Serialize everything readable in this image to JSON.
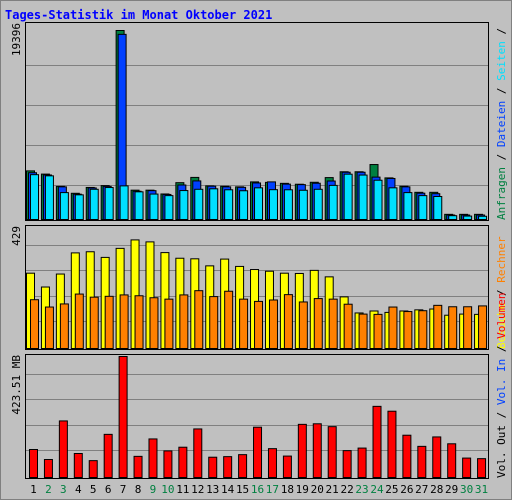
{
  "title": "Tages-Statistik im Monat Oktober 2021",
  "colors": {
    "background": "#C0C0C0",
    "title": "#0000FF",
    "hits": "#008040",
    "files": "#0040FF",
    "pages": "#00E0FF",
    "visits": "#FFFF00",
    "sites": "#FF8000",
    "volume": "#FF0000",
    "weekend": "#008040",
    "weekday": "#000000"
  },
  "chart_data": [
    {
      "type": "bar",
      "panel": "top",
      "ymax_label": "19396",
      "ylim": [
        0,
        19396
      ],
      "right_legend": [
        {
          "text": "Anfragen",
          "color": "#008040"
        },
        {
          "text": "/",
          "color": "#000000"
        },
        {
          "text": "Dateien",
          "color": "#0040FF"
        },
        {
          "text": "/",
          "color": "#000000"
        },
        {
          "text": "Seiten",
          "color": "#00E0FF"
        },
        {
          "text": "/",
          "color": "#000000"
        }
      ],
      "categories": [
        "1",
        "2",
        "3",
        "4",
        "5",
        "6",
        "7",
        "8",
        "9",
        "10",
        "11",
        "12",
        "13",
        "14",
        "15",
        "16",
        "17",
        "18",
        "19",
        "20",
        "21",
        "22",
        "23",
        "24",
        "25",
        "26",
        "27",
        "28",
        "29",
        "30",
        "31"
      ],
      "weekend_days": [
        2,
        3,
        9,
        10,
        16,
        17,
        23,
        24,
        30,
        31
      ],
      "series": [
        {
          "name": "Anfragen",
          "values": [
            4990,
            4660,
            3400,
            2690,
            3290,
            3480,
            19396,
            3010,
            3010,
            2620,
            3780,
            4320,
            3450,
            3410,
            3350,
            3860,
            3810,
            3710,
            3620,
            3820,
            4300,
            4900,
            4900,
            5640,
            4270,
            3410,
            2790,
            2790,
            530,
            530,
            530
          ]
        },
        {
          "name": "Dateien",
          "values": [
            4800,
            4570,
            3350,
            2600,
            3240,
            3400,
            19000,
            2900,
            2960,
            2570,
            3540,
            3960,
            3420,
            3350,
            3300,
            3750,
            3860,
            3630,
            3580,
            3720,
            3950,
            4850,
            4850,
            4350,
            4210,
            3350,
            2700,
            2650,
            460,
            460,
            460
          ]
        },
        {
          "name": "Seiten",
          "values": [
            4600,
            4480,
            2760,
            2530,
            3100,
            3280,
            3450,
            2840,
            2610,
            2450,
            2970,
            3100,
            3150,
            3050,
            2950,
            3250,
            3060,
            3050,
            3000,
            3100,
            3500,
            4650,
            4560,
            4030,
            3250,
            2760,
            2450,
            2360,
            390,
            350,
            330
          ]
        }
      ]
    },
    {
      "type": "bar",
      "panel": "middle",
      "ymax_label": "429",
      "ylim": [
        0,
        429
      ],
      "right_legend": [
        {
          "text": "Besuche",
          "color": "#FFFF00"
        },
        {
          "text": "/",
          "color": "#000000"
        },
        {
          "text": "Rechner",
          "color": "#FF8000"
        }
      ],
      "categories": [
        "1",
        "2",
        "3",
        "4",
        "5",
        "6",
        "7",
        "8",
        "9",
        "10",
        "11",
        "12",
        "13",
        "14",
        "15",
        "16",
        "17",
        "18",
        "19",
        "20",
        "21",
        "22",
        "23",
        "24",
        "25",
        "26",
        "27",
        "28",
        "29",
        "30",
        "31"
      ],
      "series": [
        {
          "name": "Besuche",
          "values": [
            267,
            218,
            264,
            339,
            343,
            323,
            355,
            385,
            378,
            340,
            320,
            318,
            293,
            317,
            291,
            280,
            274,
            267,
            266,
            277,
            254,
            183,
            126,
            133,
            128,
            133,
            137,
            140,
            118,
            122,
            121
          ]
        },
        {
          "name": "Rechner",
          "values": [
            173,
            147,
            158,
            193,
            182,
            185,
            190,
            187,
            180,
            175,
            190,
            205,
            184,
            203,
            175,
            167,
            172,
            191,
            165,
            177,
            175,
            157,
            122,
            121,
            147,
            131,
            134,
            153,
            148,
            148,
            151
          ]
        }
      ]
    },
    {
      "type": "bar",
      "panel": "bottom",
      "ymax_label": "423.51 MB",
      "ylim": [
        0,
        423.51
      ],
      "right_legend": [
        {
          "text": "Vol. Out",
          "color": "#000000"
        },
        {
          "text": "/",
          "color": "#000000"
        },
        {
          "text": "Vol. In",
          "color": "#0040FF"
        },
        {
          "text": "/",
          "color": "#000000"
        },
        {
          "text": "Volumen",
          "color": "#FF0000"
        }
      ],
      "categories": [
        "1",
        "2",
        "3",
        "4",
        "5",
        "6",
        "7",
        "8",
        "9",
        "10",
        "11",
        "12",
        "13",
        "14",
        "15",
        "16",
        "17",
        "18",
        "19",
        "20",
        "21",
        "22",
        "23",
        "24",
        "25",
        "26",
        "27",
        "28",
        "29",
        "30",
        "31"
      ],
      "series": [
        {
          "name": "Volumen",
          "values": [
            98,
            63,
            198,
            84,
            59,
            151,
            423.51,
            74,
            135,
            93,
            106,
            170,
            71,
            73,
            80,
            176,
            101,
            75,
            186,
            188,
            178,
            94,
            103,
            249,
            232,
            148,
            109,
            142,
            118,
            68,
            66
          ]
        }
      ]
    }
  ]
}
